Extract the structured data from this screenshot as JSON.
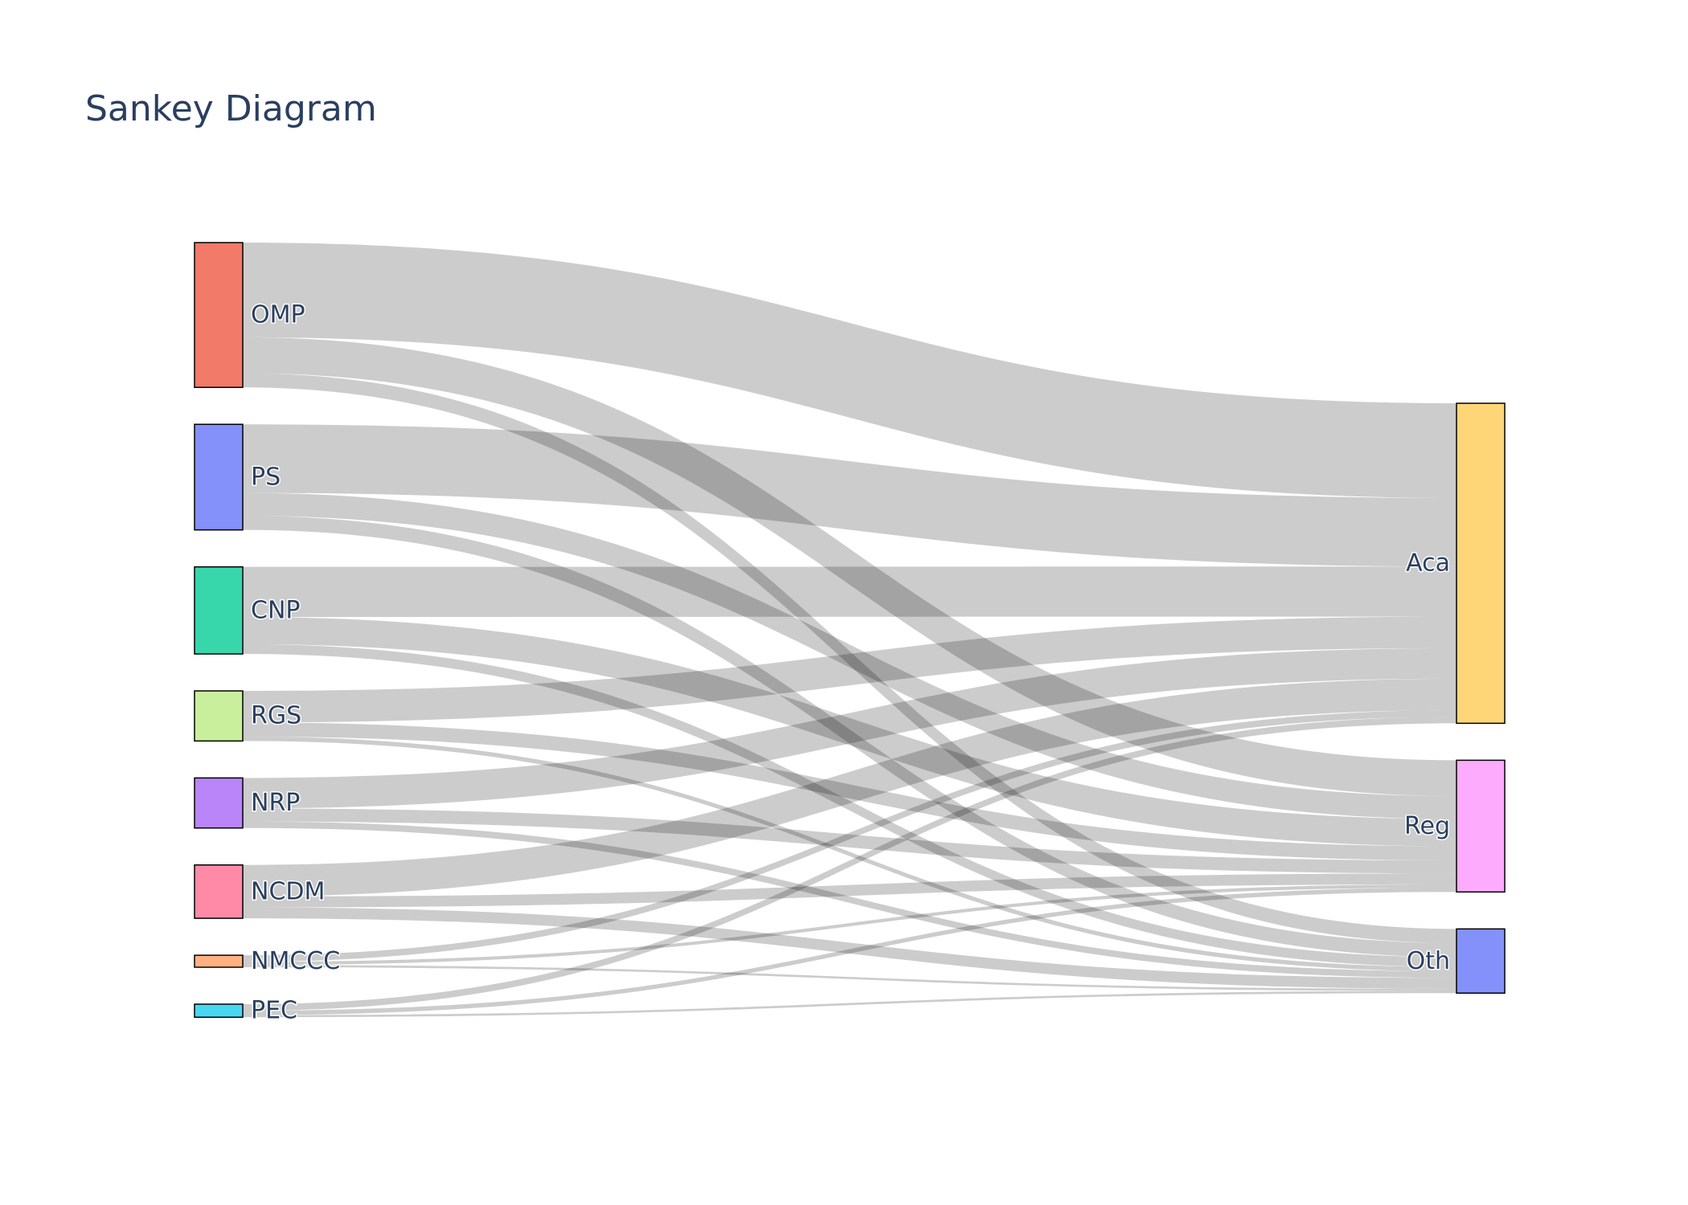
{
  "chart_data": {
    "type": "sankey",
    "title": "Sankey Diagram",
    "nodes": [
      {
        "id": "OMP",
        "label": "OMP",
        "color": "#f27a68"
      },
      {
        "id": "PS",
        "label": "PS",
        "color": "#8491fb"
      },
      {
        "id": "CNP",
        "label": "CNP",
        "color": "#37d6ab"
      },
      {
        "id": "RGS",
        "label": "RGS",
        "color": "#c9ef9c"
      },
      {
        "id": "NRP",
        "label": "NRP",
        "color": "#b985f8"
      },
      {
        "id": "NCDM",
        "label": "NCDM",
        "color": "#ff8aa8"
      },
      {
        "id": "NMCCC",
        "label": "NMCCC",
        "color": "#ffb182"
      },
      {
        "id": "PEC",
        "label": "PEC",
        "color": "#49d7f0"
      },
      {
        "id": "Aca",
        "label": "Aca",
        "color": "#fed678"
      },
      {
        "id": "Reg",
        "label": "Reg",
        "color": "#fdabfd"
      },
      {
        "id": "Oth",
        "label": "Oth",
        "color": "#8491fb"
      }
    ],
    "links": [
      {
        "source": "OMP",
        "target": "Aca",
        "value": 87
      },
      {
        "source": "OMP",
        "target": "Reg",
        "value": 33
      },
      {
        "source": "OMP",
        "target": "Oth",
        "value": 13
      },
      {
        "source": "PS",
        "target": "Aca",
        "value": 63
      },
      {
        "source": "PS",
        "target": "Reg",
        "value": 21
      },
      {
        "source": "PS",
        "target": "Oth",
        "value": 13
      },
      {
        "source": "CNP",
        "target": "Aca",
        "value": 46
      },
      {
        "source": "CNP",
        "target": "Reg",
        "value": 25
      },
      {
        "source": "CNP",
        "target": "Oth",
        "value": 9
      },
      {
        "source": "RGS",
        "target": "Aca",
        "value": 29
      },
      {
        "source": "RGS",
        "target": "Reg",
        "value": 13
      },
      {
        "source": "RGS",
        "target": "Oth",
        "value": 4
      },
      {
        "source": "NRP",
        "target": "Aca",
        "value": 28
      },
      {
        "source": "NRP",
        "target": "Reg",
        "value": 12
      },
      {
        "source": "NRP",
        "target": "Oth",
        "value": 6
      },
      {
        "source": "NCDM",
        "target": "Aca",
        "value": 29
      },
      {
        "source": "NCDM",
        "target": "Reg",
        "value": 10
      },
      {
        "source": "NCDM",
        "target": "Oth",
        "value": 10
      },
      {
        "source": "NMCCC",
        "target": "Aca",
        "value": 6
      },
      {
        "source": "NMCCC",
        "target": "Reg",
        "value": 3
      },
      {
        "source": "NMCCC",
        "target": "Oth",
        "value": 2
      },
      {
        "source": "PEC",
        "target": "Aca",
        "value": 6
      },
      {
        "source": "PEC",
        "target": "Reg",
        "value": 4
      },
      {
        "source": "PEC",
        "target": "Oth",
        "value": 2
      }
    ]
  }
}
